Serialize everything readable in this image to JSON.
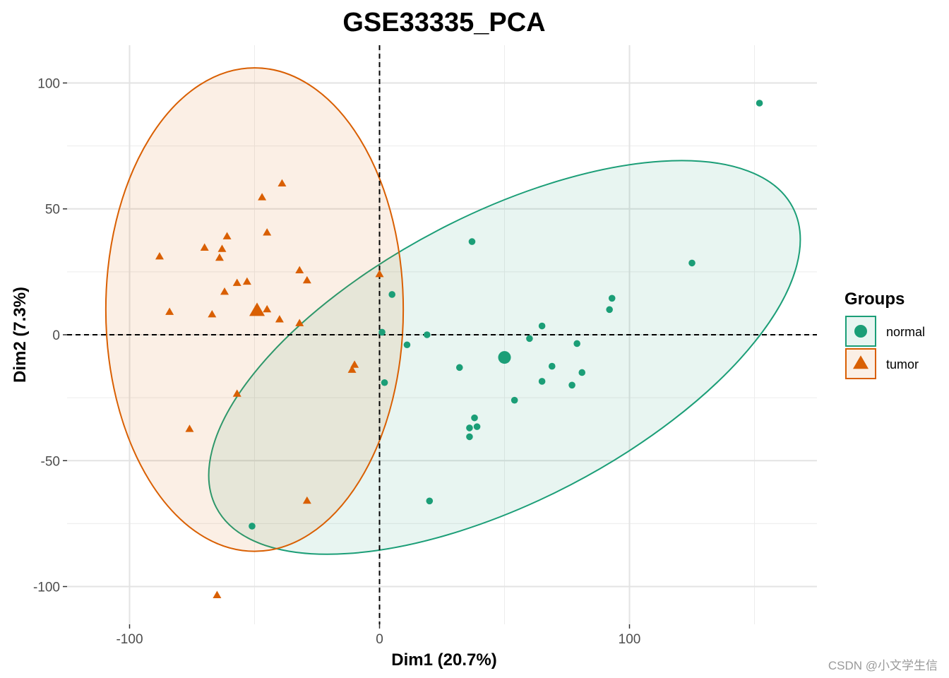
{
  "chart_data": {
    "type": "scatter",
    "title": "GSE33335_PCA",
    "xlabel": "Dim1 (20.7%)",
    "ylabel": "Dim2 (7.3%)",
    "xlim": [
      -125,
      175
    ],
    "ylim": [
      -115,
      115
    ],
    "x_ticks": [
      -100,
      0,
      100
    ],
    "x_tick_labels": [
      "-100",
      "0",
      "100"
    ],
    "y_ticks": [
      -100,
      -50,
      0,
      50,
      100
    ],
    "y_tick_labels": [
      "-100",
      "-50",
      "0",
      "50",
      "100"
    ],
    "grid": true,
    "legend": {
      "title": "Groups",
      "position": "right"
    },
    "series": [
      {
        "name": "normal",
        "marker": "circle",
        "color": "#1b9e77",
        "points": [
          [
            152,
            92
          ],
          [
            125,
            28.5
          ],
          [
            93,
            14.5
          ],
          [
            92,
            10
          ],
          [
            37,
            37
          ],
          [
            65,
            3.5
          ],
          [
            60,
            -1.5
          ],
          [
            79,
            -3.5
          ],
          [
            69,
            -12.5
          ],
          [
            81,
            -15
          ],
          [
            65,
            -18.5
          ],
          [
            77,
            -20
          ],
          [
            32,
            -13
          ],
          [
            54,
            -26
          ],
          [
            38,
            -33
          ],
          [
            36,
            -37
          ],
          [
            39,
            -36.5
          ],
          [
            36,
            -40.5
          ],
          [
            20,
            -66
          ],
          [
            19,
            0
          ],
          [
            11,
            -4
          ],
          [
            5,
            16
          ],
          [
            1,
            1
          ],
          [
            2,
            -19
          ],
          [
            -51,
            -76
          ]
        ],
        "centroid": [
          50,
          -9
        ]
      },
      {
        "name": "tumor",
        "marker": "triangle",
        "color": "#d95f02",
        "points": [
          [
            -39,
            60
          ],
          [
            -47,
            54.5
          ],
          [
            -45,
            40.5
          ],
          [
            -61,
            39
          ],
          [
            -63,
            34
          ],
          [
            -70,
            34.5
          ],
          [
            -64,
            30.5
          ],
          [
            -88,
            31
          ],
          [
            -32,
            25.5
          ],
          [
            -29,
            21.5
          ],
          [
            -53,
            21
          ],
          [
            -57,
            20.5
          ],
          [
            -62,
            17
          ],
          [
            -84,
            9
          ],
          [
            -67,
            8
          ],
          [
            -45,
            10
          ],
          [
            -40,
            6
          ],
          [
            -32,
            4.5
          ],
          [
            0,
            24
          ],
          [
            -10,
            -12
          ],
          [
            -11,
            -14
          ],
          [
            -57,
            -23.5
          ],
          [
            -76,
            -37.5
          ],
          [
            -29,
            -66
          ],
          [
            -65,
            -103.5
          ]
        ],
        "centroid": [
          -49,
          9.5
        ]
      }
    ],
    "confidence_ellipses": [
      {
        "group": "normal",
        "center": [
          50,
          -9
        ],
        "semi_axes": [
          130,
          57
        ],
        "angle_deg": 27.5
      },
      {
        "group": "tumor",
        "center": [
          -50,
          10
        ],
        "semi_axes": [
          59.5,
          96
        ],
        "angle_deg": 0
      }
    ],
    "reference_lines": {
      "x": 0,
      "y": 0,
      "style": "dashed"
    }
  },
  "watermark": "CSDN @小文学生信"
}
